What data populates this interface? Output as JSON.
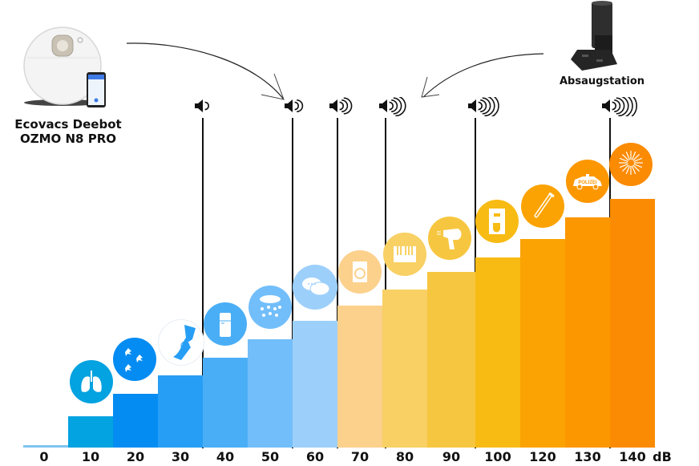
{
  "products": {
    "robot": {
      "line1": "Ecovacs Deebot",
      "line2": "OZMO N8 PRO"
    },
    "station": {
      "label": "Absaugstation"
    }
  },
  "chart_data": {
    "type": "bar",
    "title": "",
    "xlabel": "dB",
    "ylabel": "",
    "unit": "dB",
    "categories": [
      "0",
      "10",
      "20",
      "30",
      "40",
      "50",
      "60",
      "70",
      "80",
      "90",
      "100",
      "120",
      "130",
      "140"
    ],
    "values": [
      0,
      10,
      20,
      30,
      40,
      50,
      60,
      70,
      80,
      90,
      100,
      120,
      130,
      140
    ],
    "bar_colors": [
      "#7fc4ef",
      "#03a2e0",
      "#048cf2",
      "#279ef5",
      "#4aaef6",
      "#72befa",
      "#9dcffb",
      "#fcd18c",
      "#f8d063",
      "#f7c640",
      "#f7bb14",
      "#fba302",
      "#fc9700",
      "#fb8b03"
    ],
    "icons": [
      "none",
      "lungs-breathing",
      "falling-leaves",
      "whisper",
      "refrigerator",
      "rain",
      "conversation",
      "washing-machine",
      "piano",
      "hair-dryer",
      "coffee-machine",
      "trombone",
      "police-car",
      "fireworks"
    ],
    "icon_texts": {
      "police_car": "POLIZEI"
    },
    "speaker_markers": [
      {
        "at": "30-40",
        "level": 1
      },
      {
        "at": "50-60",
        "level": 2
      },
      {
        "at": "60-70",
        "level": 3
      },
      {
        "at": "70-80",
        "level": 4
      },
      {
        "at": "90-100",
        "level": 5
      },
      {
        "at": "130-140",
        "level": 6
      }
    ],
    "annotations": [
      {
        "text": "Ecovacs Deebot OZMO N8 PRO",
        "points_to": "50-60"
      },
      {
        "text": "Absaugstation",
        "points_to": "70-80"
      }
    ],
    "grid": false,
    "legend": "none"
  },
  "axis": {
    "unit_label": "dB",
    "ticks": [
      "0",
      "10",
      "20",
      "30",
      "40",
      "50",
      "60",
      "70",
      "80",
      "90",
      "100",
      "120",
      "130",
      "140"
    ]
  }
}
